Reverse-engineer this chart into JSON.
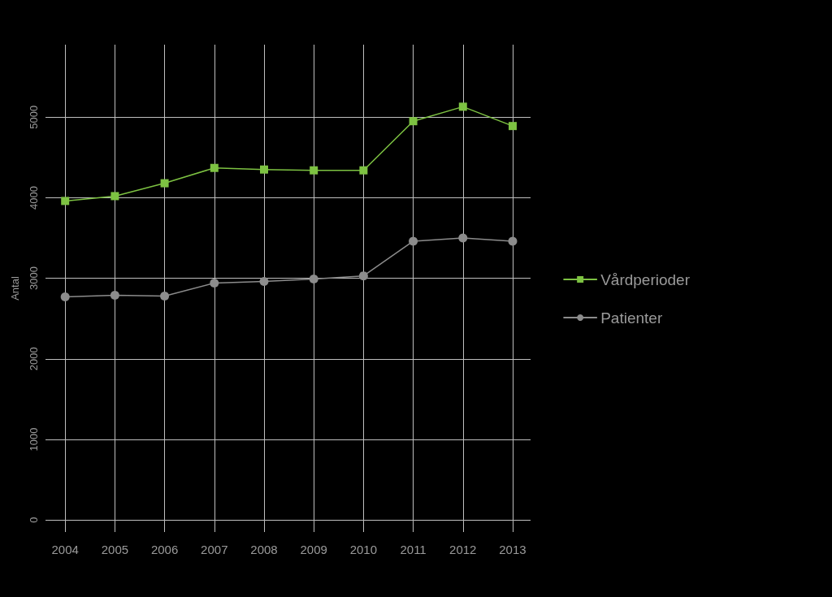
{
  "chart_data": {
    "type": "line",
    "ylabel": "Antal",
    "x": [
      2004,
      2005,
      2006,
      2007,
      2008,
      2009,
      2010,
      2011,
      2012,
      2013
    ],
    "series": [
      {
        "name": "Vårdperioder",
        "color": "#7dc242",
        "marker": "square",
        "values": [
          3960,
          4020,
          4180,
          4370,
          4350,
          4340,
          4340,
          4950,
          5130,
          4890
        ]
      },
      {
        "name": "Patienter",
        "color": "#8c8c8c",
        "marker": "circle",
        "values": [
          2770,
          2790,
          2780,
          2940,
          2960,
          2990,
          3030,
          3460,
          3500,
          3460
        ]
      }
    ],
    "xlim": [
      2003.67,
      2013.36
    ],
    "xticks": [
      2004,
      2005,
      2006,
      2007,
      2008,
      2009,
      2010,
      2011,
      2012,
      2013
    ],
    "ylim": [
      -150,
      5900
    ],
    "yticks": [
      0,
      1000,
      2000,
      3000,
      4000,
      5000
    ],
    "grid": true,
    "legend": "right",
    "line_style": "solid"
  }
}
